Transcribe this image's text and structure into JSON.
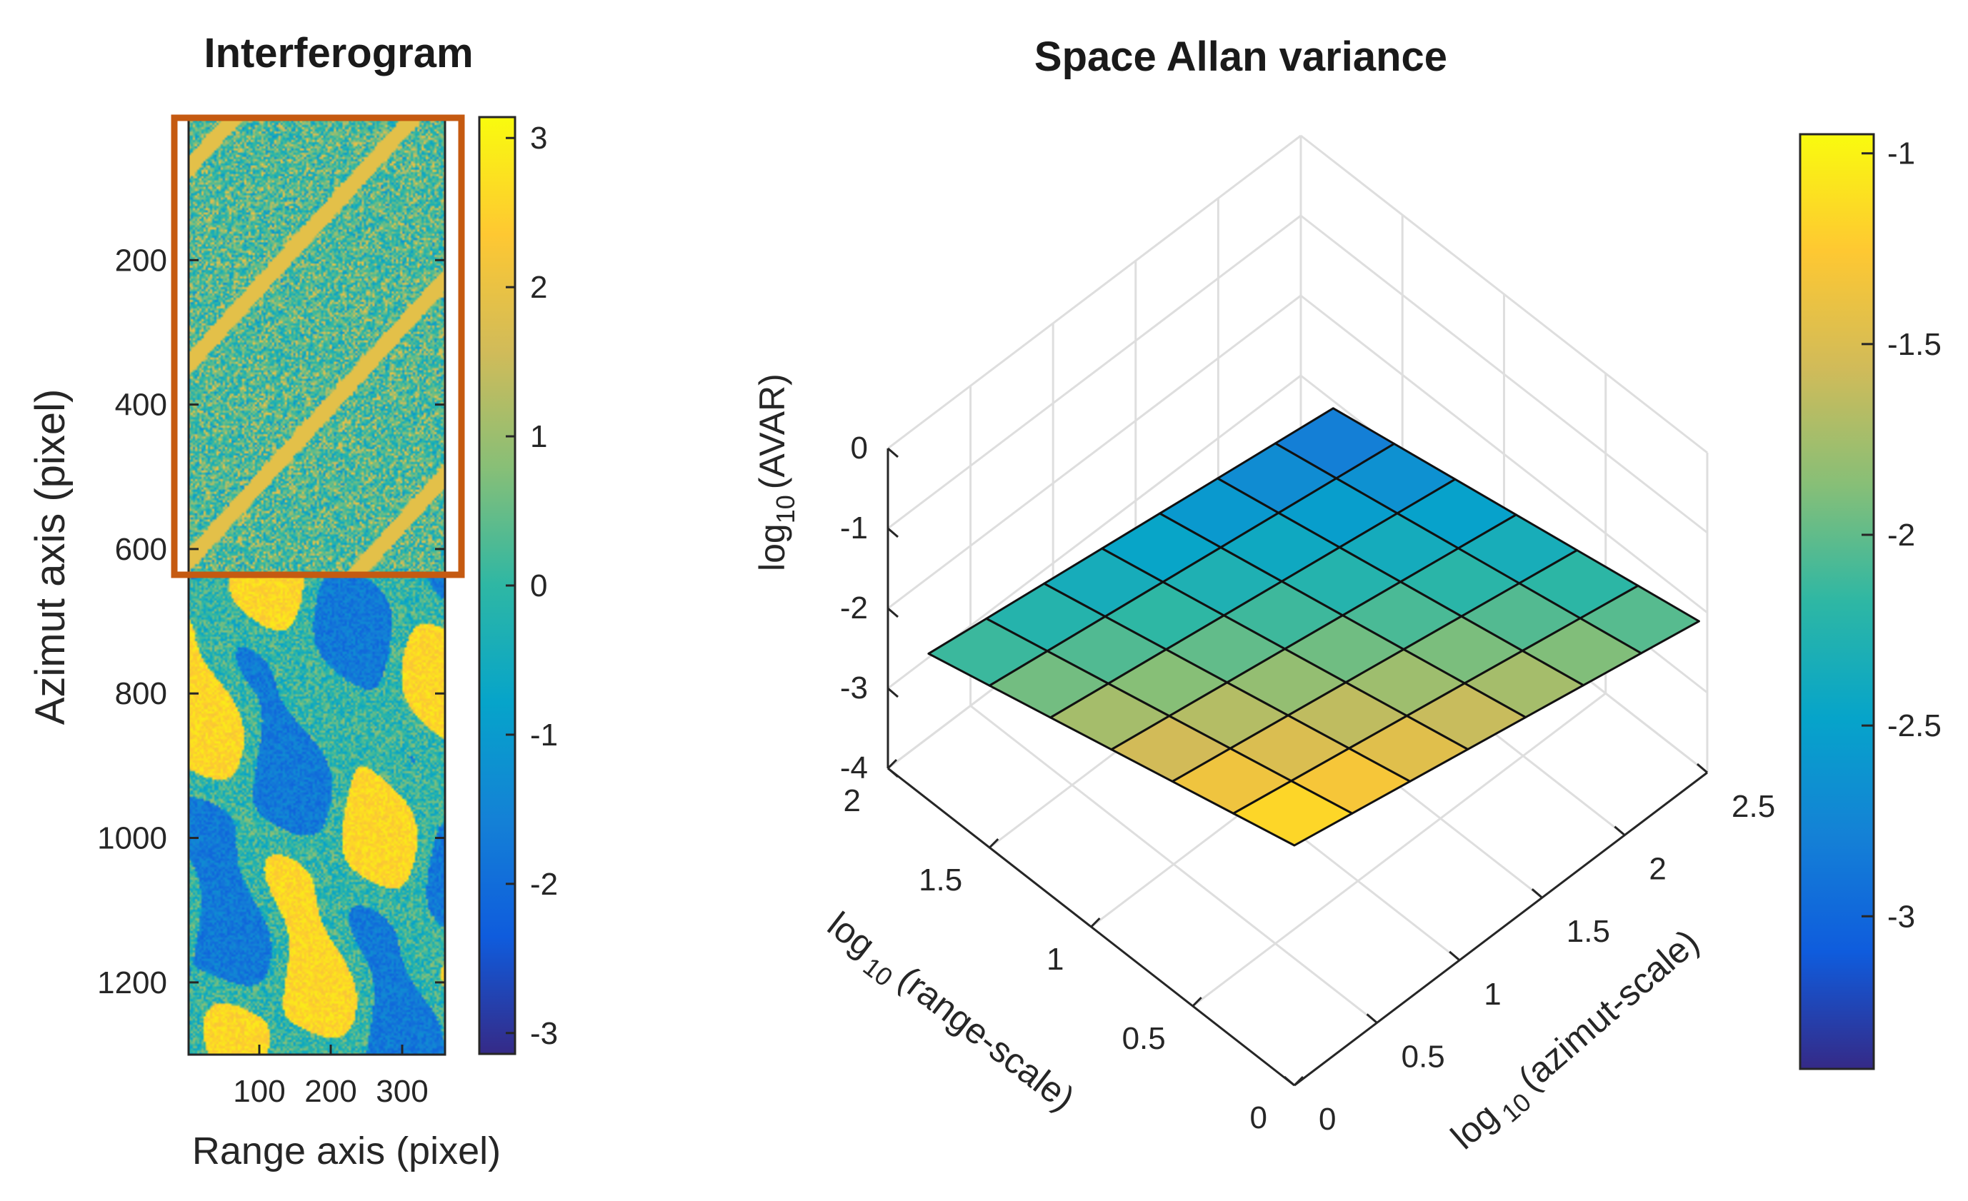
{
  "chart_data": [
    {
      "type": "heatmap",
      "title": "Interferogram",
      "xlabel": "Range axis (pixel)",
      "ylabel": "Azimut axis (pixel)",
      "xlim": [
        1,
        360
      ],
      "ylim": [
        1,
        1300
      ],
      "xticks": [
        100,
        200,
        300
      ],
      "yticks": [
        200,
        400,
        600,
        800,
        1000,
        1200
      ],
      "colorbar": {
        "range": [
          -3.14,
          3.14
        ],
        "ticks": [
          3,
          2,
          1,
          0,
          -1,
          -2,
          -3
        ]
      },
      "highlight_box": {
        "x_range": [
          -20,
          380
        ],
        "y_range": [
          0,
          640
        ],
        "color": "#c55a11"
      },
      "note": "noisy wrapped phase (-pi..pi); upper part (azimut < 640) mostly noise-like"
    },
    {
      "type": "surface3d",
      "title": "Space Allan variance",
      "xlabel_main": "log",
      "xlabel_sub": "10",
      "xlabel_rest": "(range-scale)",
      "ylabel_main": "log",
      "ylabel_sub": "10",
      "ylabel_rest": "(azimut-scale)",
      "zlabel_main": "log",
      "zlabel_sub": "10",
      "zlabel_rest": "(AVAR)",
      "xlim": [
        0,
        2
      ],
      "ylim": [
        0,
        2.5
      ],
      "zlim": [
        -4,
        0
      ],
      "xticks": [
        "0",
        "0.5",
        "1",
        "1.5",
        "2"
      ],
      "yticks": [
        "0",
        "0.5",
        "1",
        "1.5",
        "2",
        "2.5"
      ],
      "zticks": [
        "0",
        "-1",
        "-2",
        "-3",
        "-4"
      ],
      "range_scale_log10": [
        0,
        0.3,
        0.6,
        0.9,
        1.2,
        1.5,
        1.8
      ],
      "azimut_scale_log10": [
        0,
        0.35,
        0.7,
        1.05,
        1.4,
        1.75,
        2.1,
        2.45
      ],
      "surface": {
        "value_at_origin": -1.0,
        "slope_range": -0.65,
        "slope_azimut": -0.42,
        "curvature": 0.06
      },
      "colorbar": {
        "range": [
          -3.4,
          -0.95
        ],
        "ticks": [
          "-1",
          "-1.5",
          "-2",
          "-2.5",
          "-3"
        ]
      }
    }
  ]
}
